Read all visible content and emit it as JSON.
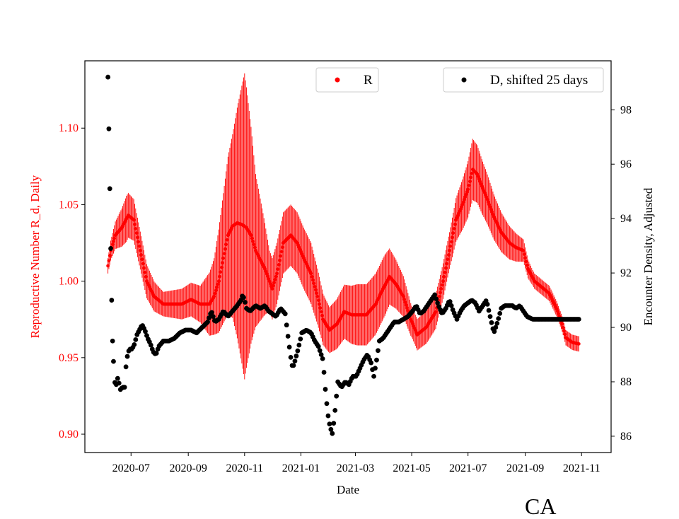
{
  "chart_data": {
    "type": "scatter",
    "title": "",
    "xlabel": "Date",
    "ylabel_left": "Reproductive Number R_d, Daily",
    "ylabel_right": "Encounter Density, Adjusted",
    "x_ticks": [
      "2020-07",
      "2020-09",
      "2020-11",
      "2021-01",
      "2021-03",
      "2021-05",
      "2021-07",
      "2021-09",
      "2021-11"
    ],
    "x_tick_days": [
      25,
      87,
      148,
      209,
      268,
      329,
      390,
      452,
      513
    ],
    "xlim_days": [
      -25,
      545
    ],
    "y_left_ticks": [
      "0.90",
      "0.95",
      "1.00",
      "1.05",
      "1.10"
    ],
    "y_left_lim": [
      0.888,
      1.144
    ],
    "y_right_ticks": [
      "86",
      "88",
      "90",
      "92",
      "94",
      "96",
      "98"
    ],
    "y_right_lim": [
      85.4,
      99.8
    ],
    "start_date": "2020-06-06",
    "end_date": "2021-10-27",
    "R_series": {
      "name": "R",
      "color": "#ff0000",
      "marker": "dot",
      "points": [
        [
          0,
          1.01
        ],
        [
          3,
          1.02
        ],
        [
          8,
          1.03
        ],
        [
          15,
          1.035
        ],
        [
          22,
          1.043
        ],
        [
          28,
          1.04
        ],
        [
          35,
          1.02
        ],
        [
          42,
          1.0
        ],
        [
          50,
          0.99
        ],
        [
          60,
          0.985
        ],
        [
          70,
          0.985
        ],
        [
          80,
          0.985
        ],
        [
          90,
          0.988
        ],
        [
          100,
          0.985
        ],
        [
          110,
          0.985
        ],
        [
          115,
          0.99
        ],
        [
          120,
          1.0
        ],
        [
          125,
          1.015
        ],
        [
          130,
          1.03
        ],
        [
          135,
          1.036
        ],
        [
          140,
          1.038
        ],
        [
          145,
          1.037
        ],
        [
          150,
          1.035
        ],
        [
          155,
          1.03
        ],
        [
          160,
          1.02
        ],
        [
          170,
          1.008
        ],
        [
          178,
          0.995
        ],
        [
          183,
          1.005
        ],
        [
          190,
          1.025
        ],
        [
          198,
          1.03
        ],
        [
          205,
          1.025
        ],
        [
          212,
          1.015
        ],
        [
          220,
          1.005
        ],
        [
          227,
          0.99
        ],
        [
          233,
          0.975
        ],
        [
          240,
          0.968
        ],
        [
          248,
          0.972
        ],
        [
          256,
          0.98
        ],
        [
          264,
          0.978
        ],
        [
          272,
          0.978
        ],
        [
          280,
          0.978
        ],
        [
          290,
          0.985
        ],
        [
          298,
          0.995
        ],
        [
          305,
          1.003
        ],
        [
          312,
          0.998
        ],
        [
          320,
          0.99
        ],
        [
          328,
          0.975
        ],
        [
          335,
          0.965
        ],
        [
          345,
          0.97
        ],
        [
          355,
          0.98
        ],
        [
          363,
          1.0
        ],
        [
          370,
          1.02
        ],
        [
          377,
          1.04
        ],
        [
          384,
          1.05
        ],
        [
          390,
          1.06
        ],
        [
          395,
          1.073
        ],
        [
          400,
          1.07
        ],
        [
          405,
          1.062
        ],
        [
          410,
          1.055
        ],
        [
          418,
          1.042
        ],
        [
          426,
          1.032
        ],
        [
          435,
          1.025
        ],
        [
          442,
          1.022
        ],
        [
          450,
          1.02
        ],
        [
          455,
          1.008
        ],
        [
          462,
          1.0
        ],
        [
          470,
          0.996
        ],
        [
          478,
          0.992
        ],
        [
          486,
          0.982
        ],
        [
          492,
          0.972
        ],
        [
          496,
          0.963
        ],
        [
          503,
          0.96
        ],
        [
          510,
          0.959
        ]
      ],
      "error_bar_halfwidth": [
        [
          0,
          0.005
        ],
        [
          20,
          0.015
        ],
        [
          60,
          0.008
        ],
        [
          100,
          0.012
        ],
        [
          115,
          0.025
        ],
        [
          135,
          0.06
        ],
        [
          148,
          0.1
        ],
        [
          160,
          0.05
        ],
        [
          175,
          0.02
        ],
        [
          195,
          0.02
        ],
        [
          220,
          0.02
        ],
        [
          240,
          0.015
        ],
        [
          270,
          0.02
        ],
        [
          300,
          0.02
        ],
        [
          330,
          0.01
        ],
        [
          370,
          0.012
        ],
        [
          395,
          0.02
        ],
        [
          430,
          0.012
        ],
        [
          460,
          0.005
        ],
        [
          510,
          0.005
        ]
      ]
    },
    "D_series": {
      "name": "D, shifted 25 days",
      "color": "#000000",
      "marker": "dot",
      "points": [
        [
          0,
          99.2
        ],
        [
          1,
          97.3
        ],
        [
          2,
          95.1
        ],
        [
          3,
          92.9
        ],
        [
          4,
          91.0
        ],
        [
          5,
          89.5
        ],
        [
          7,
          88.0
        ],
        [
          9,
          87.9
        ],
        [
          11,
          88.2
        ],
        [
          13,
          87.7
        ],
        [
          16,
          87.8
        ],
        [
          18,
          87.8
        ],
        [
          20,
          88.8
        ],
        [
          23,
          89.2
        ],
        [
          26,
          89.2
        ],
        [
          29,
          89.4
        ],
        [
          31,
          89.7
        ],
        [
          34,
          89.9
        ],
        [
          37,
          90.1
        ],
        [
          40,
          89.9
        ],
        [
          43,
          89.6
        ],
        [
          46,
          89.4
        ],
        [
          49,
          89.1
        ],
        [
          52,
          89.0
        ],
        [
          55,
          89.3
        ],
        [
          60,
          89.5
        ],
        [
          66,
          89.5
        ],
        [
          72,
          89.6
        ],
        [
          78,
          89.8
        ],
        [
          84,
          89.9
        ],
        [
          90,
          89.9
        ],
        [
          96,
          89.8
        ],
        [
          102,
          90.0
        ],
        [
          108,
          90.2
        ],
        [
          112,
          90.6
        ],
        [
          116,
          90.2
        ],
        [
          120,
          90.3
        ],
        [
          125,
          90.6
        ],
        [
          130,
          90.4
        ],
        [
          135,
          90.6
        ],
        [
          140,
          90.8
        ],
        [
          144,
          91.0
        ],
        [
          146,
          91.2
        ],
        [
          148,
          91.0
        ],
        [
          150,
          90.7
        ],
        [
          154,
          90.6
        ],
        [
          160,
          90.8
        ],
        [
          165,
          90.7
        ],
        [
          170,
          90.8
        ],
        [
          174,
          90.6
        ],
        [
          178,
          90.5
        ],
        [
          182,
          90.4
        ],
        [
          187,
          90.7
        ],
        [
          192,
          90.5
        ],
        [
          196,
          89.4
        ],
        [
          198,
          88.9
        ],
        [
          200,
          88.5
        ],
        [
          202,
          88.7
        ],
        [
          206,
          89.2
        ],
        [
          210,
          89.8
        ],
        [
          215,
          89.9
        ],
        [
          220,
          89.8
        ],
        [
          224,
          89.5
        ],
        [
          228,
          89.3
        ],
        [
          230,
          89.1
        ],
        [
          233,
          88.8
        ],
        [
          235,
          87.9
        ],
        [
          237,
          87.2
        ],
        [
          239,
          86.6
        ],
        [
          241,
          86.3
        ],
        [
          243,
          86.1
        ],
        [
          245,
          86.6
        ],
        [
          249,
          88.0
        ],
        [
          253,
          87.8
        ],
        [
          257,
          88.0
        ],
        [
          261,
          87.9
        ],
        [
          265,
          88.2
        ],
        [
          269,
          88.2
        ],
        [
          273,
          88.5
        ],
        [
          277,
          88.8
        ],
        [
          281,
          89.0
        ],
        [
          285,
          88.7
        ],
        [
          288,
          88.2
        ],
        [
          291,
          88.8
        ],
        [
          294,
          89.5
        ],
        [
          298,
          89.6
        ],
        [
          302,
          89.8
        ],
        [
          306,
          90.0
        ],
        [
          310,
          90.2
        ],
        [
          315,
          90.2
        ],
        [
          320,
          90.3
        ],
        [
          325,
          90.4
        ],
        [
          330,
          90.6
        ],
        [
          334,
          90.8
        ],
        [
          338,
          90.5
        ],
        [
          342,
          90.6
        ],
        [
          346,
          90.8
        ],
        [
          350,
          91.0
        ],
        [
          354,
          91.2
        ],
        [
          358,
          90.8
        ],
        [
          362,
          90.5
        ],
        [
          366,
          90.7
        ],
        [
          370,
          91.0
        ],
        [
          374,
          90.6
        ],
        [
          378,
          90.3
        ],
        [
          382,
          90.6
        ],
        [
          386,
          90.8
        ],
        [
          390,
          90.9
        ],
        [
          394,
          91.0
        ],
        [
          398,
          90.9
        ],
        [
          402,
          90.6
        ],
        [
          406,
          90.8
        ],
        [
          410,
          91.0
        ],
        [
          414,
          90.4
        ],
        [
          418,
          89.8
        ],
        [
          422,
          90.2
        ],
        [
          426,
          90.7
        ],
        [
          430,
          90.8
        ],
        [
          434,
          90.8
        ],
        [
          438,
          90.8
        ],
        [
          442,
          90.7
        ],
        [
          446,
          90.8
        ],
        [
          450,
          90.6
        ],
        [
          454,
          90.4
        ],
        [
          460,
          90.3
        ],
        [
          470,
          90.3
        ],
        [
          480,
          90.3
        ],
        [
          490,
          90.3
        ],
        [
          500,
          90.3
        ],
        [
          510,
          90.3
        ]
      ]
    },
    "legend": [
      {
        "label": "R",
        "color": "#ff0000",
        "position": "top-center"
      },
      {
        "label": "D, shifted 25 days",
        "color": "#000000",
        "position": "top-right"
      }
    ]
  },
  "corner_label": "CA"
}
